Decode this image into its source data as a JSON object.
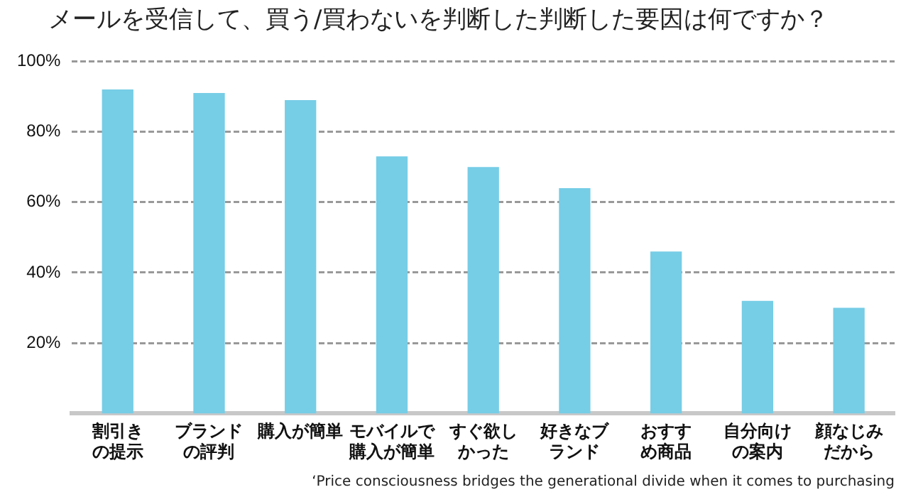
{
  "chart_data": {
    "type": "bar",
    "title": "メールを受信して、買う/買わないを判断した判断した要因は何ですか？",
    "categories": [
      "割引きの提示",
      "ブランドの評判",
      "購入が簡単",
      "モバイルで購入が簡単",
      "すぐ欲しかった",
      "好きなブランド",
      "おすすめ商品",
      "自分向けの案内",
      "顔なじみだから"
    ],
    "values": [
      92,
      91,
      89,
      73,
      70,
      64,
      46,
      32,
      30
    ],
    "color": "#76cde6",
    "ylim": [
      0,
      100
    ],
    "yticks": [
      {
        "value": 20,
        "label": "20%"
      },
      {
        "value": 40,
        "label": "40%"
      },
      {
        "value": 60,
        "label": "60%"
      },
      {
        "value": 80,
        "label": "80%"
      },
      {
        "value": 100,
        "label": "100%"
      }
    ],
    "grid": "y",
    "legend": false,
    "annotations": [
      "‘Price consciousness bridges the generational divide when it comes to purchasing"
    ]
  }
}
